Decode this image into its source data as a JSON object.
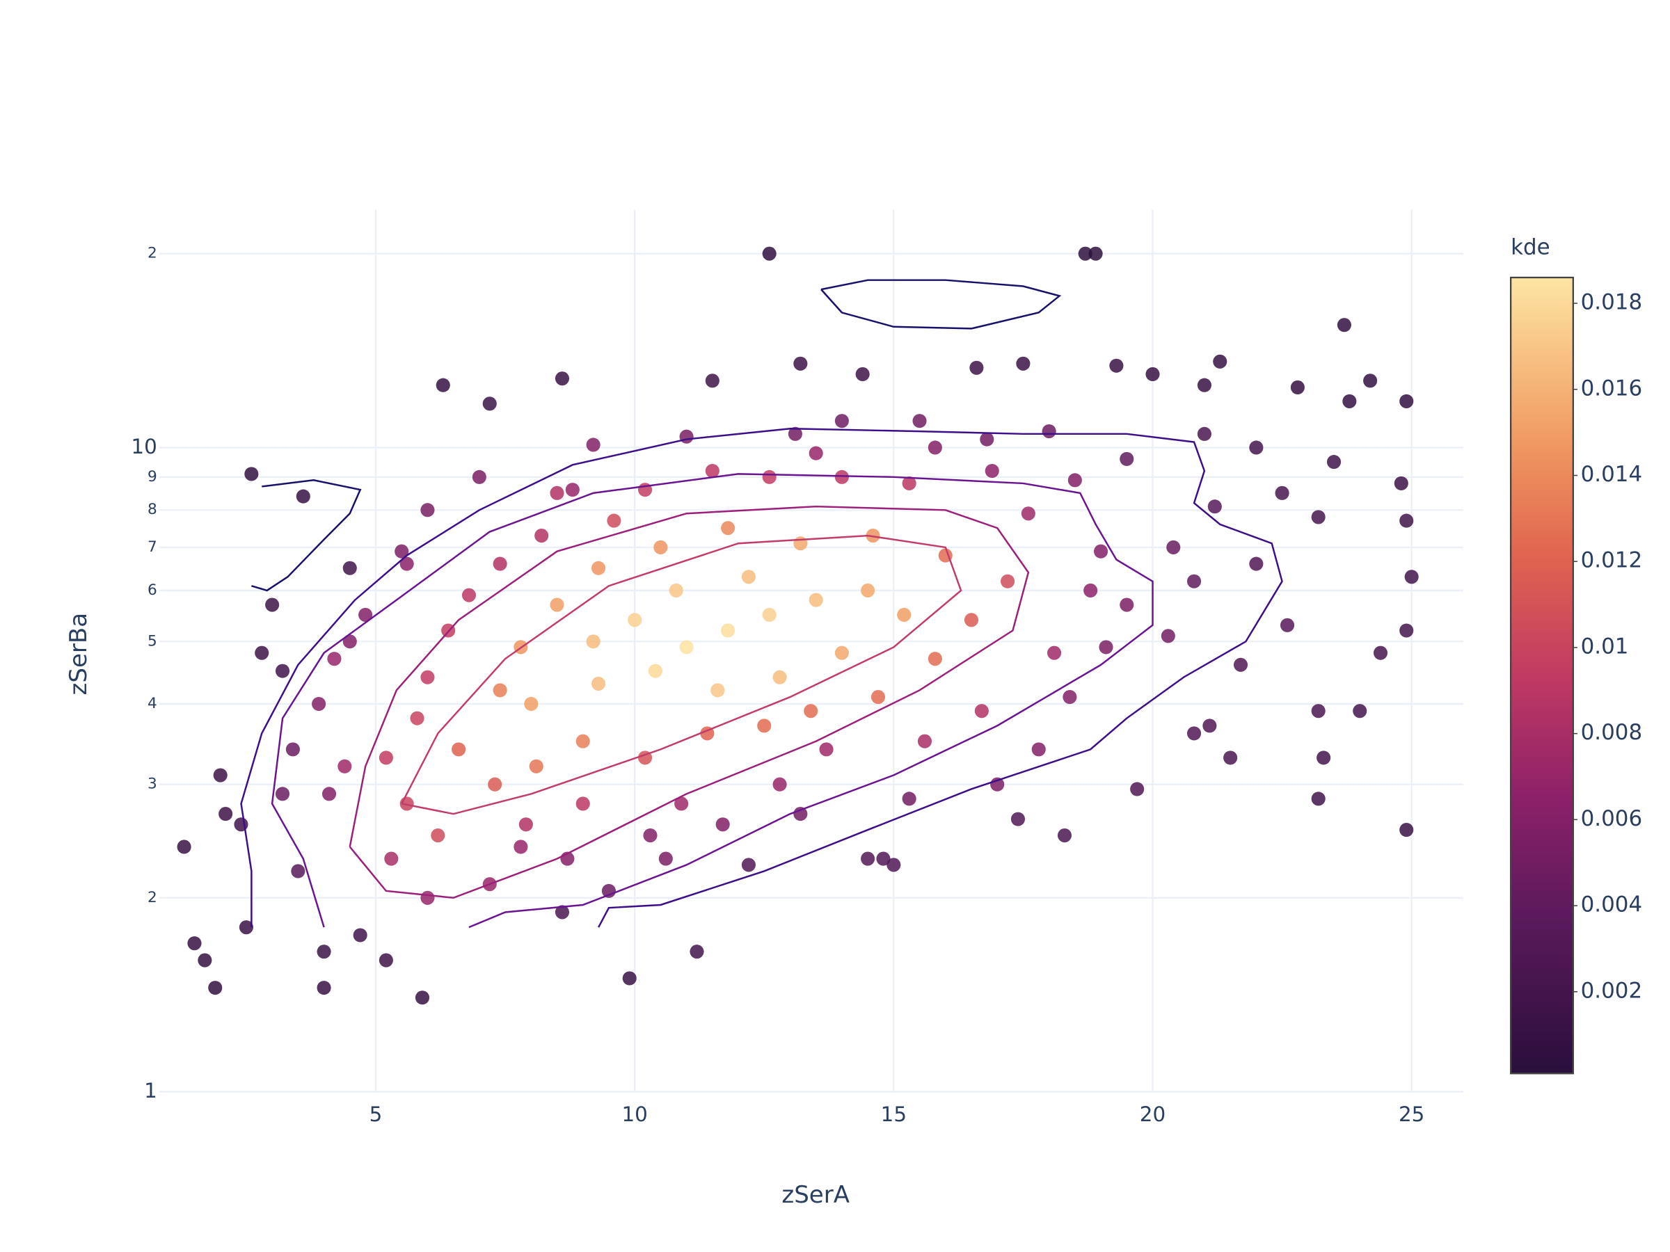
{
  "chart_data": {
    "type": "scatter",
    "x_label": "zSerA",
    "y_label": "zSerBa",
    "colorbar_title": "kde",
    "xlim": [
      0.82,
      26
    ],
    "xticks": [
      5,
      10,
      15,
      20,
      25
    ],
    "ylim": [
      1,
      23.4
    ],
    "log_y": true,
    "yticks": [
      1,
      2,
      3,
      4,
      5,
      6,
      7,
      8,
      9,
      10,
      {
        "value": 20,
        "label": "2"
      }
    ],
    "grid": true,
    "color_range": [
      0.0001,
      0.0186
    ],
    "color_ticks": [
      0.002,
      0.004,
      0.006,
      0.008,
      0.01,
      0.012,
      0.014,
      0.016,
      0.018
    ],
    "colorscale": [
      [
        0,
        "#2a0f3b"
      ],
      [
        0.2,
        "#5b1a5c"
      ],
      [
        0.35,
        "#8e2169"
      ],
      [
        0.5,
        "#c13a63"
      ],
      [
        0.65,
        "#e0644f"
      ],
      [
        0.8,
        "#f19c62"
      ],
      [
        1,
        "#fde5a3"
      ]
    ],
    "x": [
      12.6,
      18.7,
      18.9,
      23.7,
      6.3,
      8.6,
      7.2,
      13.2,
      14.4,
      11.5,
      16.6,
      17.5,
      19.3,
      20.0,
      21.3,
      21.0,
      22.8,
      24.2,
      24.9,
      23.8,
      2.6,
      3.6,
      4.5,
      3.0,
      2.8,
      3.2,
      2.0,
      2.1,
      1.3,
      2.4,
      1.5,
      1.7,
      1.9,
      2.5,
      4.0,
      4.0,
      4.7,
      5.2,
      5.9,
      9.9,
      11.2,
      8.6,
      12.2,
      14.5,
      14.8,
      15.0,
      17.4,
      18.3,
      19.7,
      21.5,
      23.3,
      23.2,
      24.9,
      23.2,
      24.0,
      24.4,
      24.9,
      25.0,
      24.9,
      24.8,
      23.2,
      22.5,
      21.2,
      22.0,
      22.6,
      21.7,
      20.8,
      21.1,
      20.8,
      23.5,
      22.0,
      21.0,
      19.5,
      18.0,
      16.8,
      15.5,
      14.0,
      13.1,
      11.0,
      9.2,
      8.8,
      7.0,
      6.0,
      5.5,
      5.6,
      4.8,
      4.5,
      4.2,
      3.9,
      3.4,
      3.2,
      3.5,
      4.1,
      4.4,
      5.2,
      5.6,
      6.2,
      5.3,
      6.0,
      7.2,
      7.9,
      8.7,
      9.0,
      10.3,
      10.6,
      10.9,
      12.8,
      13.7,
      15.6,
      16.7,
      17.8,
      18.4,
      19.1,
      19.5,
      20.4,
      19.0,
      17.6,
      18.5,
      16.9,
      15.3,
      14.0,
      12.6,
      11.5,
      10.2,
      9.6,
      8.2,
      7.4,
      6.8,
      6.4,
      6.0,
      5.8,
      6.6,
      7.3,
      8.1,
      9.0,
      10.2,
      11.4,
      12.5,
      13.4,
      14.7,
      15.8,
      16.5,
      17.2,
      16.0,
      14.6,
      13.2,
      11.8,
      10.5,
      9.3,
      8.5,
      7.8,
      7.4,
      8.0,
      9.3,
      10.4,
      11.0,
      11.8,
      12.6,
      13.5,
      14.5,
      15.2,
      14.0,
      12.8,
      11.6,
      10.0,
      9.2,
      10.8,
      12.2,
      8.5,
      13.5,
      15.8,
      18.8,
      18.1,
      20.3,
      17.0,
      15.3,
      13.2,
      11.7,
      9.5,
      7.8
    ],
    "y": [
      20,
      20,
      20,
      15.5,
      12.5,
      12.8,
      11.7,
      13.5,
      13,
      12.7,
      13.3,
      13.5,
      13.4,
      13,
      13.6,
      12.5,
      12.4,
      12.7,
      11.8,
      11.8,
      9.1,
      8.4,
      6.5,
      5.7,
      4.8,
      4.5,
      3.1,
      2.7,
      2.4,
      2.6,
      1.7,
      1.6,
      1.45,
      1.8,
      1.65,
      1.45,
      1.75,
      1.6,
      1.4,
      1.5,
      1.65,
      1.9,
      2.25,
      2.3,
      2.3,
      2.25,
      2.65,
      2.5,
      2.95,
      3.3,
      3.3,
      2.85,
      2.55,
      3.9,
      3.9,
      4.8,
      5.2,
      6.3,
      7.7,
      8.8,
      7.8,
      8.5,
      8.1,
      6.6,
      5.3,
      4.6,
      3.6,
      3.7,
      6.2,
      9.5,
      10,
      10.5,
      9.6,
      10.6,
      10.3,
      11,
      11,
      10.5,
      10.4,
      10.1,
      8.6,
      9,
      8.0,
      6.9,
      6.6,
      5.5,
      5,
      4.7,
      4.0,
      3.4,
      2.9,
      2.2,
      2.9,
      3.2,
      3.3,
      2.8,
      2.5,
      2.3,
      2.0,
      2.1,
      2.6,
      2.3,
      2.8,
      2.5,
      2.3,
      2.8,
      3.0,
      3.4,
      3.5,
      3.9,
      3.4,
      4.1,
      4.9,
      5.7,
      7.0,
      6.9,
      7.9,
      8.9,
      9.2,
      8.8,
      9.0,
      9.0,
      9.2,
      8.6,
      7.7,
      7.3,
      6.6,
      5.9,
      5.2,
      4.4,
      3.8,
      3.4,
      3.0,
      3.2,
      3.5,
      3.3,
      3.6,
      3.7,
      3.9,
      4.1,
      4.7,
      5.4,
      6.2,
      6.8,
      7.3,
      7.1,
      7.5,
      7.0,
      6.5,
      5.7,
      4.9,
      4.2,
      4.0,
      4.3,
      4.5,
      4.9,
      5.2,
      5.5,
      5.8,
      6.0,
      5.5,
      4.8,
      4.4,
      4.2,
      5.4,
      5.0,
      6.0,
      6.3,
      8.5,
      9.8,
      10.0,
      6.0,
      4.8,
      5.1,
      3.0,
      2.85,
      2.7,
      2.6,
      2.05,
      2.4
    ],
    "kde": [
      0.0005,
      0.0004,
      0.0004,
      0.0008,
      0.001,
      0.0012,
      0.0013,
      0.0015,
      0.0016,
      0.0017,
      0.0015,
      0.0014,
      0.0012,
      0.0011,
      0.001,
      0.0011,
      0.0009,
      0.0008,
      0.0008,
      0.0009,
      0.0008,
      0.001,
      0.0018,
      0.0015,
      0.0016,
      0.0018,
      0.0015,
      0.0016,
      0.0012,
      0.0018,
      0.001,
      0.0009,
      0.0008,
      0.0012,
      0.0014,
      0.0012,
      0.0018,
      0.0016,
      0.0011,
      0.0012,
      0.0018,
      0.0025,
      0.003,
      0.0032,
      0.003,
      0.003,
      0.003,
      0.0025,
      0.003,
      0.0025,
      0.002,
      0.0018,
      0.0012,
      0.0025,
      0.002,
      0.0022,
      0.002,
      0.0018,
      0.0018,
      0.0015,
      0.0022,
      0.0024,
      0.0035,
      0.003,
      0.0035,
      0.003,
      0.003,
      0.003,
      0.004,
      0.0018,
      0.002,
      0.0025,
      0.004,
      0.0045,
      0.005,
      0.005,
      0.0048,
      0.005,
      0.0055,
      0.006,
      0.007,
      0.0055,
      0.0055,
      0.0055,
      0.0065,
      0.006,
      0.006,
      0.007,
      0.006,
      0.0045,
      0.0045,
      0.0035,
      0.006,
      0.0075,
      0.0095,
      0.01,
      0.0105,
      0.008,
      0.007,
      0.007,
      0.0085,
      0.006,
      0.009,
      0.006,
      0.0055,
      0.0075,
      0.007,
      0.0075,
      0.008,
      0.0085,
      0.006,
      0.006,
      0.0055,
      0.0055,
      0.0045,
      0.006,
      0.0075,
      0.006,
      0.0065,
      0.009,
      0.009,
      0.0095,
      0.009,
      0.0095,
      0.0105,
      0.0085,
      0.0085,
      0.009,
      0.0095,
      0.0095,
      0.01,
      0.012,
      0.0115,
      0.013,
      0.0135,
      0.011,
      0.012,
      0.0125,
      0.0125,
      0.0125,
      0.0125,
      0.0115,
      0.0105,
      0.0125,
      0.0145,
      0.0155,
      0.014,
      0.0145,
      0.0145,
      0.015,
      0.0145,
      0.0135,
      0.015,
      0.0165,
      0.018,
      0.0185,
      0.0182,
      0.0175,
      0.0165,
      0.0155,
      0.015,
      0.0155,
      0.0165,
      0.017,
      0.0175,
      0.0165,
      0.017,
      0.0165,
      0.0085,
      0.007,
      0.006,
      0.0065,
      0.0075,
      0.005,
      0.0055,
      0.005,
      0.005,
      0.0058,
      0.0045,
      0.007
    ],
    "contours": [
      {
        "color": "#17116b",
        "x": [
          13.6,
          14.5,
          16,
          17.5,
          18.2,
          17.8,
          16.5,
          15,
          14.0,
          13.6
        ],
        "y": [
          17.6,
          18.2,
          18.2,
          17.8,
          17.2,
          16.2,
          15.3,
          15.4,
          16.2,
          17.6
        ]
      },
      {
        "color": "#17116b",
        "x": [
          2.8,
          3.8,
          4.7,
          4.5,
          4.0,
          3.3,
          2.9,
          2.6
        ],
        "y": [
          8.7,
          8.9,
          8.6,
          7.9,
          7.2,
          6.3,
          6.0,
          6.1
        ]
      },
      {
        "color": "#3d0e8a",
        "x": [
          2.6,
          2.6,
          2.4,
          2.8,
          3.5,
          4.6,
          5.6,
          7.0,
          8.8,
          11,
          13,
          15.5,
          17.5,
          19.5,
          20.8,
          21.0,
          20.8,
          21.3,
          22.3,
          22.5,
          21.8,
          20.6,
          19.5,
          18.8,
          16.5,
          14.5,
          12.5,
          10.5,
          9.5,
          9.3
        ],
        "y": [
          1.8,
          2.2,
          2.8,
          3.6,
          4.6,
          5.8,
          6.8,
          8.0,
          9.4,
          10.3,
          10.7,
          10.6,
          10.5,
          10.5,
          10.2,
          9.2,
          8.2,
          7.6,
          7.1,
          6.2,
          5.0,
          4.4,
          3.8,
          3.4,
          2.95,
          2.55,
          2.2,
          1.95,
          1.93,
          1.8
        ]
      },
      {
        "color": "#6a1491",
        "x": [
          4.0,
          3.6,
          3.0,
          3.2,
          4.0,
          5.4,
          7.2,
          9.2,
          12,
          15,
          17.5,
          18.6,
          18.9,
          19.3,
          20.0,
          20.0,
          19,
          17,
          15,
          13,
          11,
          9,
          7.5,
          6.8
        ],
        "y": [
          1.8,
          2.3,
          2.8,
          3.8,
          4.8,
          5.8,
          7.4,
          8.5,
          9.1,
          9.0,
          8.8,
          8.5,
          7.6,
          6.7,
          6.2,
          5.3,
          4.6,
          3.7,
          3.1,
          2.7,
          2.25,
          1.95,
          1.9,
          1.8
        ]
      },
      {
        "color": "#9c1f7a",
        "x": [
          4.5,
          4.8,
          5.4,
          6.6,
          8.5,
          11,
          13.5,
          16,
          17.0,
          17.6,
          17.3,
          15.5,
          13.5,
          11,
          8.5,
          6.5,
          5.2,
          4.5
        ],
        "y": [
          2.4,
          3.2,
          4.2,
          5.4,
          6.9,
          7.9,
          8.1,
          8.0,
          7.5,
          6.4,
          5.2,
          4.2,
          3.5,
          2.9,
          2.3,
          2.0,
          2.05,
          2.4
        ]
      },
      {
        "color": "#c33b68",
        "x": [
          5.5,
          6.2,
          7.5,
          9.5,
          12,
          14.5,
          16,
          16.3,
          15,
          13,
          10.5,
          8,
          6.5,
          5.5
        ],
        "y": [
          2.8,
          3.6,
          4.7,
          6.1,
          7.1,
          7.3,
          7.0,
          6.0,
          4.9,
          4.1,
          3.4,
          2.9,
          2.7,
          2.8
        ]
      }
    ]
  }
}
